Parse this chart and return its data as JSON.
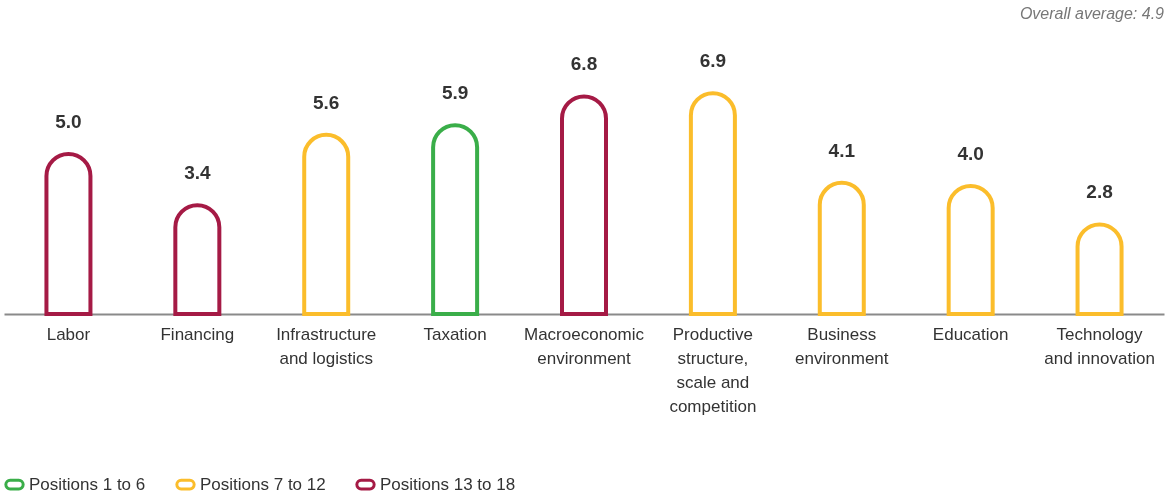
{
  "chart_data": {
    "type": "bar",
    "legend": "bottom",
    "categories": [
      "Labor",
      "Financing",
      "Infrastructure and logistics",
      "Taxation",
      "Macroeconomic environment",
      "Productive structure, scale and competition",
      "Business environment",
      "Education",
      "Technology and innovation"
    ],
    "series": [
      {
        "name": "Positions 1 to 6",
        "color": "#3aae49",
        "values": [
          null,
          null,
          null,
          5.9,
          null,
          null,
          null,
          null,
          null
        ],
        "value_labels": [
          null,
          null,
          null,
          "5.9",
          null,
          null,
          null,
          null,
          null
        ]
      },
      {
        "name": "Positions 7 to 12",
        "color": "#fbbd2b",
        "values": [
          null,
          null,
          5.6,
          null,
          null,
          6.9,
          4.1,
          4.0,
          2.8
        ],
        "value_labels": [
          null,
          null,
          "5.6",
          null,
          null,
          "6.9",
          "4.1",
          "4.0",
          "2.8"
        ]
      },
      {
        "name": "Positions 13 to 18",
        "color": "#a51a45",
        "values": [
          5.0,
          3.4,
          null,
          null,
          6.8,
          null,
          null,
          null,
          null
        ],
        "value_labels": [
          "5.0",
          "3.4",
          null,
          null,
          "6.8",
          null,
          null,
          null,
          null
        ]
      }
    ],
    "annotations": [
      "Overall average: 4.9"
    ]
  }
}
